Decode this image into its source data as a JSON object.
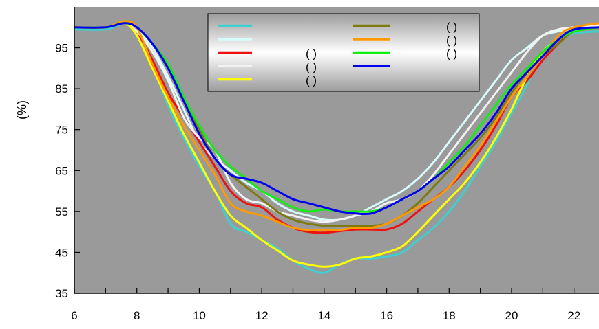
{
  "chart_data": {
    "type": "line",
    "title": "",
    "xlabel": "",
    "ylabel": "(%)",
    "xlim": [
      6,
      22.8
    ],
    "ylim": [
      35,
      105
    ],
    "x_ticks": [
      6,
      8,
      10,
      12,
      14,
      16,
      18,
      20,
      22
    ],
    "y_ticks": [
      35,
      45,
      55,
      65,
      75,
      85,
      95
    ],
    "grid": false,
    "legend_position": "top-center",
    "colors": {
      "plot_background": "#9a9a9a",
      "axis": "#000000"
    },
    "legend": {
      "entries": [
        {
          "color": "#3fcfcf",
          "text": ""
        },
        {
          "color": "#d8fbfb",
          "text": ""
        },
        {
          "color": "#ee1111",
          "text": "(   )"
        },
        {
          "color": "#f2f2f2",
          "text": "(   )"
        },
        {
          "color": "#ffff00",
          "text": "(   )"
        },
        {
          "color": "#7d7a10",
          "text": "(   )"
        },
        {
          "color": "#ff9900",
          "text": "(      )"
        },
        {
          "color": "#11ee11",
          "text": "(   )"
        },
        {
          "color": "#0000ee",
          "text": ""
        }
      ]
    },
    "series": [
      {
        "color": "#3fcfcf",
        "x": [
          6,
          7,
          7.6,
          8,
          8.5,
          9,
          9.5,
          10,
          10.5,
          11,
          11.5,
          12,
          12.5,
          13,
          13.5,
          14,
          14.5,
          15,
          15.5,
          16,
          16.5,
          17,
          17.5,
          18,
          18.5,
          19,
          19.5,
          20,
          20.5,
          21,
          21.5,
          22,
          22.8
        ],
        "y": [
          99.5,
          99.5,
          101,
          99.5,
          91,
          81,
          73,
          66,
          60,
          52,
          50,
          48,
          46,
          43,
          41,
          40,
          42,
          43.5,
          43.5,
          44,
          45,
          48,
          51,
          55,
          60,
          66,
          72,
          79,
          86,
          94,
          97,
          98.5,
          99
        ]
      },
      {
        "color": "#d8fbfb",
        "x": [
          6,
          7,
          7.6,
          8,
          8.5,
          9,
          9.5,
          10,
          10.5,
          11,
          11.5,
          12,
          12.5,
          13,
          13.5,
          14,
          14.5,
          15,
          15.5,
          16,
          16.5,
          17,
          17.5,
          18,
          18.5,
          19,
          19.5,
          20,
          20.5,
          21,
          21.5,
          22,
          22.8
        ],
        "y": [
          100,
          100,
          101,
          99.5,
          95,
          88,
          80,
          72,
          68,
          65,
          62,
          60,
          57,
          55,
          54,
          53,
          53,
          54,
          56,
          58,
          60,
          63,
          67,
          72,
          77,
          82,
          87,
          92,
          95,
          98,
          99,
          99.5,
          100
        ]
      },
      {
        "color": "#ee1111",
        "x": [
          6,
          7,
          7.6,
          8,
          8.5,
          9,
          9.5,
          10,
          10.5,
          11,
          11.5,
          12,
          12.5,
          13,
          13.5,
          14,
          14.5,
          15,
          15.5,
          16,
          16.5,
          17,
          17.5,
          18,
          18.5,
          19,
          19.5,
          20,
          20.5,
          21,
          21.5,
          22,
          22.8
        ],
        "y": [
          100,
          100,
          101,
          99,
          92,
          84,
          78,
          72,
          66,
          60,
          57,
          56,
          53,
          51,
          50,
          49.8,
          50.2,
          50.6,
          50.6,
          50.6,
          52,
          55,
          58,
          61,
          65,
          70,
          76,
          83,
          87,
          92,
          96,
          99.5,
          100.5
        ]
      },
      {
        "color": "#f2f2f2",
        "x": [
          6,
          7,
          7.6,
          8,
          8.5,
          9,
          9.5,
          10,
          10.5,
          11,
          11.5,
          12,
          12.5,
          13,
          13.5,
          14,
          14.5,
          15,
          15.5,
          16,
          16.5,
          17,
          17.5,
          18,
          18.5,
          19,
          19.5,
          20,
          20.5,
          21,
          21.5,
          22,
          22.8
        ],
        "y": [
          100,
          100,
          101,
          99,
          94,
          87,
          78,
          73,
          70,
          62,
          58,
          57,
          55,
          54,
          53,
          52.5,
          53,
          54,
          55,
          57,
          58,
          60,
          64,
          69,
          74,
          79,
          84,
          89,
          94,
          98,
          99.5,
          100,
          100.5
        ]
      },
      {
        "color": "#ffff00",
        "x": [
          6,
          7,
          7.6,
          8,
          8.5,
          9,
          9.5,
          10,
          10.5,
          11,
          11.5,
          12,
          12.5,
          13,
          13.5,
          14,
          14.5,
          15,
          15.5,
          16,
          16.5,
          17,
          17.5,
          18,
          18.5,
          19,
          19.5,
          20,
          20.5,
          21,
          21.5,
          22,
          22.8
        ],
        "y": [
          100,
          100,
          101,
          98,
          90,
          82,
          74,
          67,
          60,
          54,
          51,
          48,
          45.5,
          43,
          42,
          41.5,
          42,
          43.5,
          44,
          45,
          46.5,
          50,
          54,
          58,
          62,
          67,
          73,
          80,
          88,
          94,
          97,
          99,
          100
        ]
      },
      {
        "color": "#7d7a10",
        "x": [
          6,
          7,
          7.6,
          8,
          8.5,
          9,
          9.5,
          10,
          10.5,
          11,
          11.5,
          12,
          12.5,
          13,
          13.5,
          14,
          14.5,
          15,
          15.5,
          16,
          16.5,
          17,
          17.5,
          18,
          18.5,
          19,
          19.5,
          20,
          20.5,
          21,
          21.5,
          22,
          22.8
        ],
        "y": [
          100,
          100,
          101,
          100,
          96,
          90,
          82,
          75,
          68,
          64,
          61,
          58,
          55,
          53,
          52,
          51.5,
          51.5,
          51.5,
          51.5,
          52,
          54,
          57,
          61,
          65,
          69,
          73,
          78,
          84,
          89,
          93,
          96,
          99,
          100
        ]
      },
      {
        "color": "#ff9900",
        "x": [
          6,
          7,
          7.6,
          8,
          8.5,
          9,
          9.5,
          10,
          10.5,
          11,
          11.5,
          12,
          12.5,
          13,
          13.5,
          14,
          14.5,
          15,
          15.5,
          16,
          16.5,
          17,
          17.5,
          18,
          18.5,
          19,
          19.5,
          20,
          20.5,
          21,
          21.5,
          22,
          22.8
        ],
        "y": [
          100,
          100,
          101.5,
          100,
          91,
          83,
          76,
          70,
          64,
          57,
          55,
          54,
          52.5,
          51,
          50.5,
          50.5,
          50.5,
          51,
          51,
          52,
          54,
          56,
          58,
          61,
          66,
          71,
          77,
          83,
          88,
          93,
          98,
          100,
          101
        ]
      },
      {
        "color": "#11ee11",
        "x": [
          6,
          7,
          7.6,
          8,
          8.5,
          9,
          9.5,
          10,
          10.5,
          11,
          11.5,
          12,
          12.5,
          13,
          13.5,
          14,
          14.5,
          15,
          15.5,
          16,
          16.5,
          17,
          17.5,
          18,
          18.5,
          19,
          19.5,
          20,
          20.5,
          21,
          21.5,
          22,
          22.8
        ],
        "y": [
          100,
          100,
          101,
          100,
          96,
          91,
          83,
          76,
          70,
          66,
          63,
          60,
          58,
          56,
          55,
          55.5,
          55,
          55,
          55,
          56,
          58,
          60,
          63,
          67,
          71,
          76,
          81,
          86,
          90,
          94,
          97,
          99,
          100
        ]
      },
      {
        "color": "#0000ee",
        "x": [
          6,
          7,
          7.6,
          8,
          8.5,
          9,
          9.5,
          10,
          10.5,
          11,
          11.5,
          12,
          12.5,
          13,
          13.5,
          14,
          14.5,
          15,
          15.5,
          16,
          16.5,
          17,
          17.5,
          18,
          18.5,
          19,
          19.5,
          20,
          20.5,
          21,
          21.5,
          22,
          22.8
        ],
        "y": [
          100,
          100,
          101,
          100,
          96,
          90,
          82,
          74,
          68,
          64,
          63,
          62,
          60,
          58,
          57,
          56,
          55,
          54.5,
          54.5,
          56,
          58,
          60,
          63,
          66,
          70,
          74,
          79,
          85,
          89,
          93,
          97,
          99.5,
          100
        ]
      }
    ]
  }
}
